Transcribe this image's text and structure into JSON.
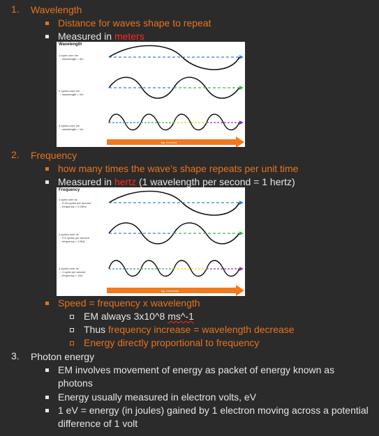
{
  "section1": {
    "number": "1.",
    "title": "Wavelength",
    "bullet1": "Distance for waves shape to repeat",
    "bullet2_prefix": "Measured in ",
    "bullet2_unit": "meters"
  },
  "figure1": {
    "title": "Wavelength",
    "rows": [
      "1 cycle over 4m\n→ wavelength = 4m",
      "2 cycles over 4m\n→ wavelength = 2m",
      "4 cycles over 4m\n→ wavelength = 1m"
    ],
    "axis_label": "eg. 4 metres",
    "colors": {
      "blue": "#2f7fd6",
      "green": "#36b84a",
      "yellow": "#e8d51c",
      "purple": "#8a2fb6",
      "orange": "#f07a1d"
    }
  },
  "section2": {
    "number": "2.",
    "title": "Frequency",
    "bullet1": "how many times the wave’s shape repeats per unit time",
    "bullet2_prefix": "Measured in ",
    "bullet2_unit": "hertz",
    "bullet2_suffix": " (1 wavelength per second = 1 hertz)"
  },
  "figure2": {
    "title": "Frequency",
    "rows": [
      "1 cycle over 4s\n→ 0.25 cycles per second\n→ frequency = 0.25Hz",
      "2 cycles over 4s\n→ 0.5 cycles per second\n→ frequency = 0.5Hz",
      "4 cycles over 4s\n→ 1 cycle per second\n→ frequency = 1Hz"
    ],
    "axis_label": "eg. 4 seconds"
  },
  "speed": {
    "bullet": "Speed = frequency x wavelength",
    "sub1_prefix": "EM always 3x10^8 ",
    "sub1_unit": "ms^-1",
    "sub2_prefix": "Thus ",
    "sub2_highlight": "frequency increase = wavelength decrease",
    "sub3": "Energy directly proportional to frequency"
  },
  "section3": {
    "number": "3.",
    "title": "Photon energy",
    "bullet1_line1": "EM involves movement of energy as packet of energy known as",
    "bullet1_line2": "photons",
    "bullet2": "Energy usually measured in electron volts, eV",
    "bullet3_line1": "1 eV = energy (in joules) gained by 1 electron moving across a potential",
    "bullet3_line2": "difference of 1 volt"
  }
}
